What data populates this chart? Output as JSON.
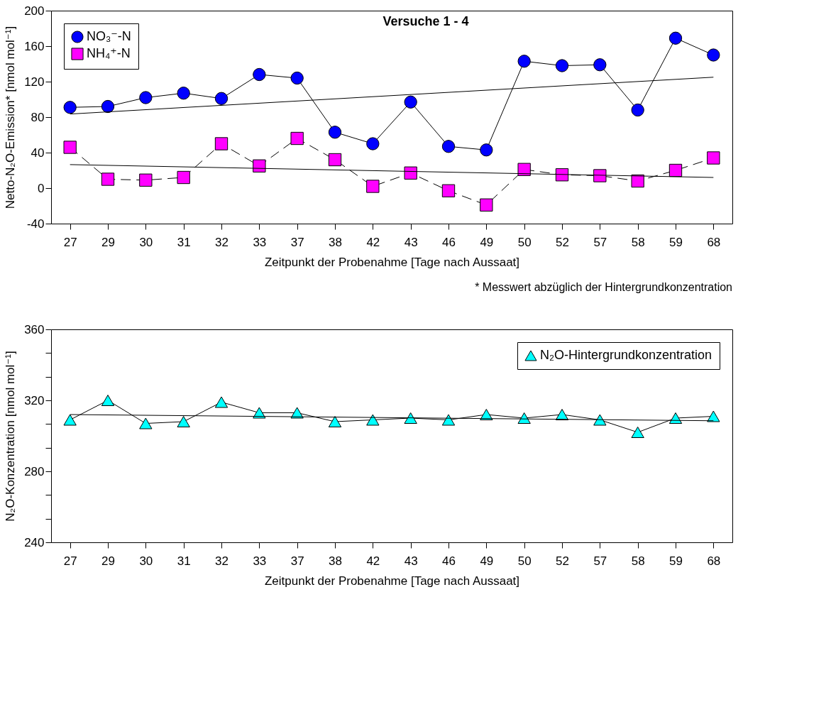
{
  "chart_data": [
    {
      "type": "line",
      "title": "Versuche 1 - 4",
      "xlabel": "Zeitpunkt der Probenahme [Tage nach Aussaat]",
      "ylabel": "Netto-N₂O-Emission* [nmol mol⁻¹]",
      "annotations": [
        "* Messwert abzüglich der Hintergrundkonzentration"
      ],
      "categories": [
        "27",
        "29",
        "30",
        "31",
        "32",
        "33",
        "37",
        "38",
        "42",
        "43",
        "46",
        "49",
        "50",
        "52",
        "57",
        "58",
        "59",
        "68"
      ],
      "ylim": [
        -40,
        200
      ],
      "yticks": [
        -40,
        0,
        40,
        80,
        120,
        160,
        200
      ],
      "grid": false,
      "legend": "top left",
      "series": [
        {
          "name": "NO₃⁻-N",
          "color": "#0000ff",
          "marker": "circle",
          "line_style": "solid",
          "values": [
            91,
            92,
            102,
            107,
            101,
            128,
            124,
            63,
            50,
            97,
            47,
            43,
            143,
            138,
            139,
            88,
            169,
            150
          ]
        },
        {
          "name": "NH₄⁺-N",
          "color": "#ff00ff",
          "marker": "square",
          "line_style": "dashed",
          "values": [
            46,
            10,
            9,
            12,
            50,
            25,
            56,
            32,
            2,
            17,
            -3,
            -19,
            21,
            15,
            14,
            8,
            20,
            34
          ]
        },
        {
          "type": "line",
          "color": "#000000",
          "marker": "none",
          "line_style": "solid",
          "x": [
            "27",
            "68"
          ],
          "values": [
            83.5,
            125
          ]
        },
        {
          "type": "line",
          "color": "#000000",
          "marker": "none",
          "line_style": "solid",
          "x": [
            "27",
            "68"
          ],
          "values": [
            26.5,
            12
          ]
        }
      ]
    },
    {
      "type": "line",
      "xlabel": "Zeitpunkt der Probenahme [Tage nach Aussaat]",
      "ylabel": "N₂O-Konzentration [nmol mol⁻¹]",
      "categories": [
        "27",
        "29",
        "30",
        "31",
        "32",
        "33",
        "37",
        "38",
        "42",
        "43",
        "46",
        "49",
        "50",
        "52",
        "57",
        "58",
        "59",
        "68"
      ],
      "ylim": [
        240,
        360
      ],
      "yticks": [
        240,
        {
          "value": 253.3,
          "label": null
        },
        {
          "value": 266.7,
          "label": null
        },
        280,
        {
          "value": 293.3,
          "label": null
        },
        {
          "value": 306.7,
          "label": null
        },
        320,
        {
          "value": 333.3,
          "label": null
        },
        {
          "value": 346.7,
          "label": null
        },
        360
      ],
      "grid": false,
      "legend": "top right",
      "series": [
        {
          "name": "N₂O-Hintergrundkonzentration",
          "color": "#00ffff",
          "marker": "triangle",
          "line_style": "solid",
          "values": [
            309,
            320,
            307,
            308,
            319,
            313,
            313,
            308,
            309,
            310,
            309,
            312,
            310,
            312,
            309,
            302,
            310,
            311
          ]
        },
        {
          "type": "line",
          "color": "#000000",
          "marker": "none",
          "line_style": "solid",
          "x": [
            "27",
            "68"
          ],
          "values": [
            312,
            308.5
          ]
        }
      ]
    }
  ]
}
